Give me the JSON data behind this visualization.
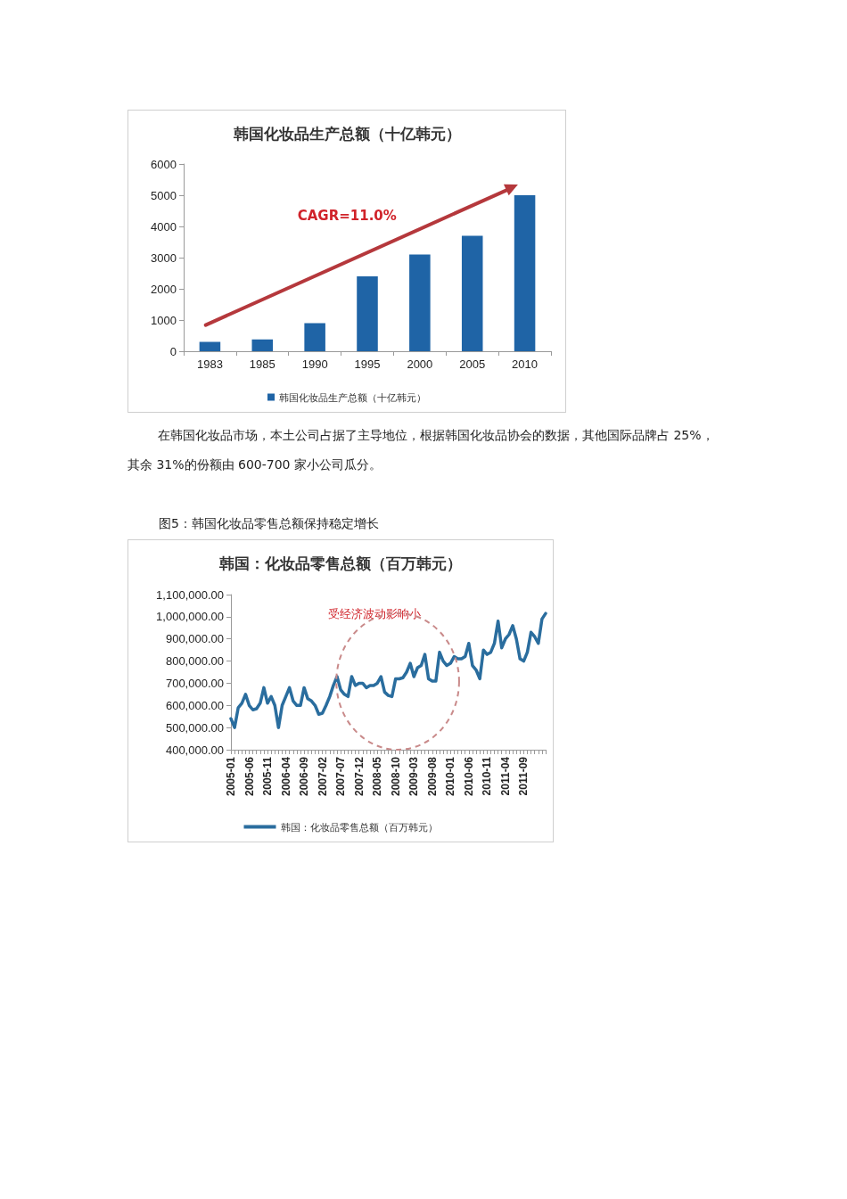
{
  "chart_data": [
    {
      "type": "bar",
      "title": "韩国化妆品生产总额（十亿韩元）",
      "categories": [
        "1983",
        "1985",
        "1990",
        "1995",
        "2000",
        "2005",
        "2010"
      ],
      "series": [
        {
          "name": "韩国化妆品生产总额（十亿韩元）",
          "color": "#1f64a6",
          "values": [
            300,
            380,
            900,
            2400,
            3100,
            3700,
            5000
          ]
        }
      ],
      "ylim": [
        0,
        6000
      ],
      "yticks": [
        0,
        1000,
        2000,
        3000,
        4000,
        5000,
        6000
      ],
      "legend": "bottom",
      "annotations": [
        "CAGR=11.0%",
        "在韩国化妆品市场，本土公司占据了主导地位，根据韩国化妆品协会的数据，其他国际品牌占 25%，其余 31%的份额由 600-700 家小公司瓜分。"
      ]
    },
    {
      "type": "line",
      "title": "韩国：化妆品零售总额（百万韩元）",
      "categories": [
        "2005-01",
        null,
        null,
        null,
        null,
        "2005-06",
        null,
        null,
        null,
        null,
        "2005-11",
        null,
        null,
        null,
        null,
        "2006-04",
        null,
        null,
        null,
        null,
        "2006-09",
        null,
        null,
        null,
        null,
        "2007-02",
        null,
        null,
        null,
        null,
        "2007-07",
        null,
        null,
        null,
        null,
        "2007-12",
        null,
        null,
        null,
        null,
        "2008-05",
        null,
        null,
        null,
        null,
        "2008-10",
        null,
        null,
        null,
        null,
        "2009-03",
        null,
        null,
        null,
        null,
        "2009-08",
        null,
        null,
        null,
        null,
        "2010-01",
        null,
        null,
        null,
        null,
        "2010-06",
        null,
        null,
        null,
        null,
        "2010-11",
        null,
        null,
        null,
        null,
        "2011-04",
        null,
        null,
        null,
        null,
        "2011-09",
        null,
        null,
        null,
        null,
        null,
        null
      ],
      "series": [
        {
          "name": "韩国：化妆品零售总额（百万韩元）",
          "color": "#2a6d9e",
          "values": [
            540000,
            500000,
            590000,
            610000,
            650000,
            600000,
            580000,
            585000,
            610000,
            680000,
            610000,
            640000,
            600000,
            500000,
            600000,
            640000,
            680000,
            620000,
            600000,
            600000,
            680000,
            630000,
            620000,
            600000,
            560000,
            565000,
            600000,
            640000,
            690000,
            730000,
            670000,
            650000,
            640000,
            730000,
            690000,
            700000,
            700000,
            680000,
            690000,
            690000,
            700000,
            730000,
            660000,
            645000,
            640000,
            720000,
            720000,
            725000,
            750000,
            790000,
            730000,
            770000,
            780000,
            830000,
            720000,
            710000,
            710000,
            840000,
            800000,
            780000,
            790000,
            820000,
            810000,
            810000,
            820000,
            880000,
            780000,
            760000,
            720000,
            850000,
            830000,
            840000,
            880000,
            980000,
            860000,
            900000,
            920000,
            960000,
            900000,
            810000,
            800000,
            840000,
            930000,
            910000,
            880000,
            990000,
            1015000
          ]
        }
      ],
      "ylim": [
        400000,
        1100000
      ],
      "yticks": [
        {
          "value": 400000,
          "label": "400,000.00"
        },
        {
          "value": 500000,
          "label": "500,000.00"
        },
        {
          "value": 600000,
          "label": "600,000.00"
        },
        {
          "value": 700000,
          "label": "700,000.00"
        },
        {
          "value": 800000,
          "label": "800,000.00"
        },
        {
          "value": 900000,
          "label": "900,000.00"
        },
        {
          "value": 1000000,
          "label": "1,000,000.00"
        },
        {
          "value": 1100000,
          "label": "1,100,000.00"
        }
      ],
      "legend": "bottom",
      "marker": "none",
      "line_style": "solid",
      "annotations": [
        "图5：韩国化妆品零售总额保持稳定增长",
        "受经济波动影响小"
      ]
    }
  ]
}
